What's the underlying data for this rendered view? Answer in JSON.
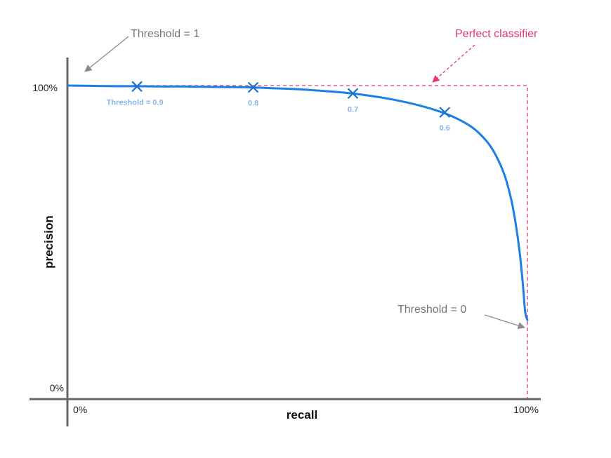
{
  "chart_data": {
    "type": "line",
    "title": "",
    "xlabel": "recall",
    "ylabel": "precision",
    "xlim": [
      0,
      100
    ],
    "ylim": [
      0,
      100
    ],
    "x_tick_labels": [
      "0%",
      "100%"
    ],
    "y_tick_labels": [
      "0%",
      "100%"
    ],
    "colors": {
      "curve": "#1a7fe6",
      "perfect": "#e8386a",
      "annotation": "#8a8a8a",
      "point_label": "#8ab4e8",
      "axis": "#666666"
    },
    "series": [
      {
        "x": [
          0,
          5,
          10,
          15,
          20,
          25,
          30,
          35,
          40,
          45,
          50,
          55,
          60,
          65,
          70,
          75,
          80,
          84,
          88,
          91,
          93,
          95,
          96.5,
          97.5,
          98.3,
          99,
          99.5,
          100
        ],
        "y": [
          100,
          99.9,
          99.8,
          99.8,
          99.7,
          99.7,
          99.6,
          99.5,
          99.4,
          99.1,
          98.8,
          98.3,
          97.7,
          96.8,
          95.6,
          94.0,
          91.9,
          89.6,
          86.2,
          81.9,
          77.4,
          70.6,
          62.3,
          54.0,
          45.2,
          34.7,
          25.6,
          22.8
        ]
      }
    ],
    "threshold_points": [
      {
        "x": 15,
        "y": 99.7,
        "label": "Threshold = 0.9"
      },
      {
        "x": 40.3,
        "y": 99.4,
        "label": "0.8"
      },
      {
        "x": 62,
        "y": 97.4,
        "label": "0.7"
      },
      {
        "x": 82,
        "y": 91.2,
        "label": "0.6"
      }
    ],
    "perfect_classifier": {
      "x": [
        0,
        100,
        100
      ],
      "y": [
        100,
        100,
        0
      ],
      "label": "Perfect classifier"
    },
    "annotations": [
      {
        "text": "Threshold = 1",
        "target": {
          "x": 0,
          "y": 100
        }
      },
      {
        "text": "Threshold = 0",
        "target": {
          "x": 100,
          "y": 22.8
        }
      }
    ]
  }
}
